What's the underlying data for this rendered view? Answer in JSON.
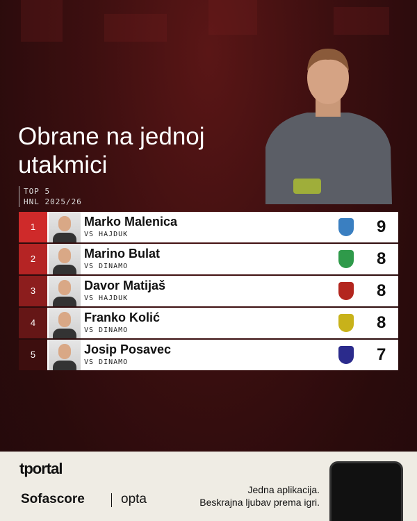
{
  "header": {
    "title_lines": [
      "Obrane na jednoj",
      "utakmici"
    ],
    "subtitle_lines": [
      "TOP 5",
      "HNL 2025/26"
    ]
  },
  "table": {
    "rows": [
      {
        "rank": 1,
        "player": "Marko Malenica",
        "opponent": "VS HAJDUK",
        "value": 9
      },
      {
        "rank": 2,
        "player": "Marino Bulat",
        "opponent": "VS DINAMO",
        "value": 8
      },
      {
        "rank": 3,
        "player": "Davor Matijaš",
        "opponent": "VS HAJDUK",
        "value": 8
      },
      {
        "rank": 4,
        "player": "Franko Kolić",
        "opponent": "VS DINAMO",
        "value": 8
      },
      {
        "rank": 5,
        "player": "Josip Posavec",
        "opponent": "VS DINAMO",
        "value": 7
      }
    ]
  },
  "footer": {
    "brand": "tportal",
    "partners": [
      "Sofascore",
      "opta"
    ],
    "tagline_lines": [
      "Jedna aplikacija.",
      "Beskrajna ljubav prema igri."
    ]
  }
}
